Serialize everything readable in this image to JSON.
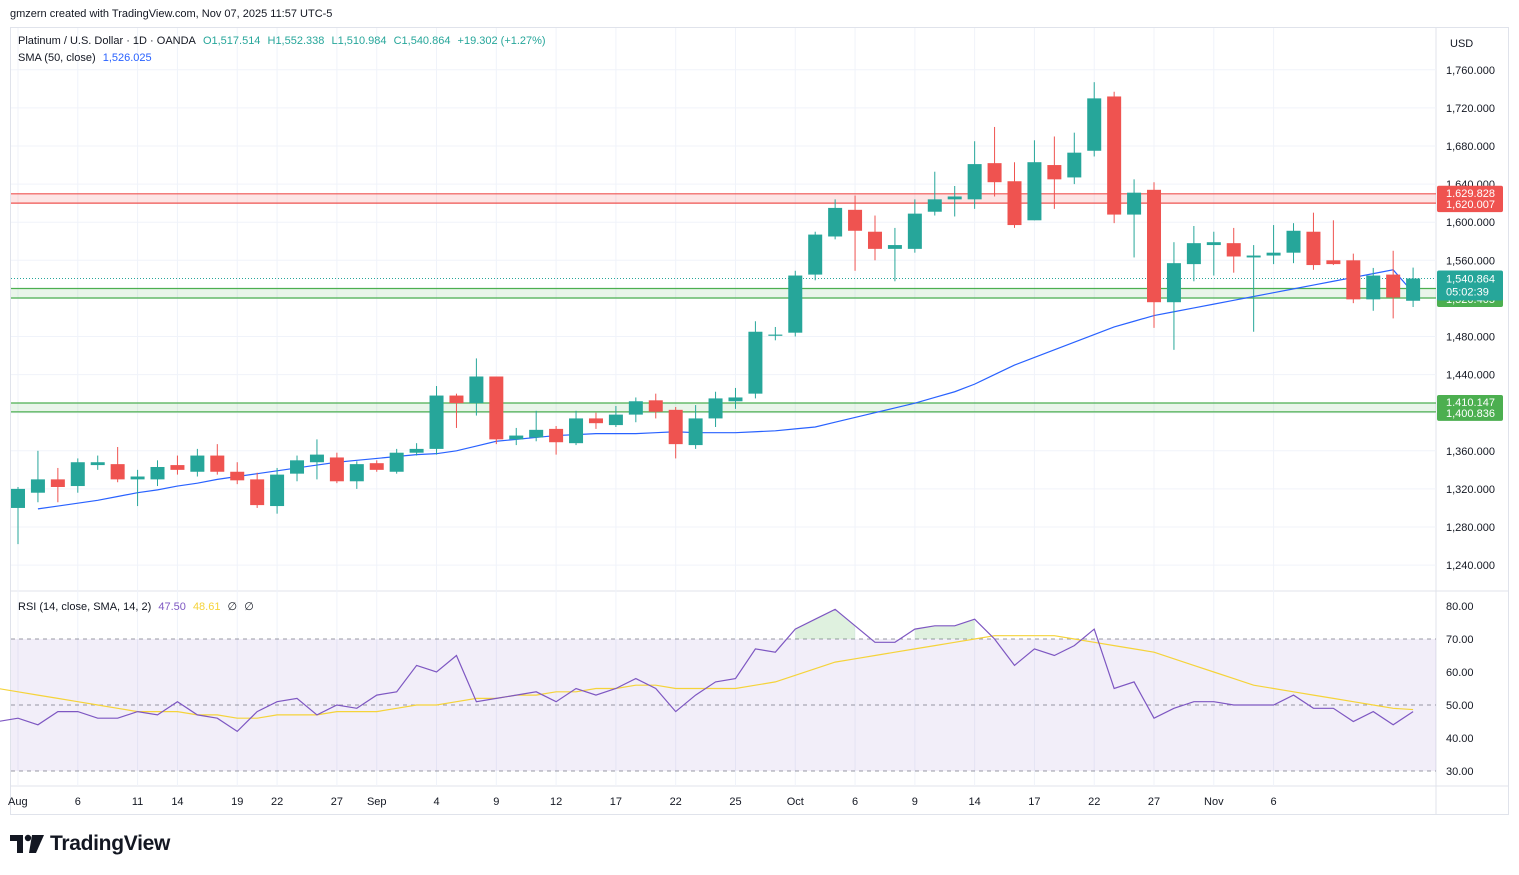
{
  "header": {
    "attribution": "gmzern created with TradingView.com, Nov 07, 2025 11:57 UTC-5"
  },
  "legend": {
    "symbol": "Platinum / U.S. Dollar · 1D · OANDA",
    "open": "O1,517.514",
    "high": "H1,552.338",
    "low": "L1,510.984",
    "close": "C1,540.864",
    "change": "+19.302 (+1.27%)",
    "sma_label": "SMA (50, close)",
    "sma_value": "1,526.025",
    "rsi_label": "RSI (14, close, SMA, 14, 2)",
    "rsi_value": "47.50",
    "rsi_sma_value": "48.61",
    "rsi_extra1": "∅",
    "rsi_extra2": "∅"
  },
  "price_scale": {
    "currency": "USD"
  },
  "brand": {
    "name": "TradingView"
  },
  "colors": {
    "up": "#26a69a",
    "down": "#ef5350",
    "sma": "#2962ff",
    "rsi": "#7e57c2",
    "rsi_sma": "#f5d33a",
    "resistance": "#ef5350",
    "support": "#4caf50"
  },
  "chart_data": [
    {
      "type": "candlestick",
      "title": "Platinum / U.S. Dollar · 1D · OANDA",
      "ylim": [
        1220,
        1780
      ],
      "y_ticks": [
        "1,240.000",
        "1,280.000",
        "1,320.000",
        "1,360.000",
        "1,400.000",
        "1,440.000",
        "1,480.000",
        "1,520.000",
        "1,560.000",
        "1,600.000",
        "1,640.000",
        "1,680.000",
        "1,720.000",
        "1,760.000"
      ],
      "x_tick_labels": [
        "Aug",
        "6",
        "11",
        "14",
        "19",
        "22",
        "27",
        "Sep",
        "4",
        "9",
        "12",
        "17",
        "22",
        "25",
        "Oct",
        "6",
        "9",
        "14",
        "17",
        "22",
        "27",
        "Nov",
        "6"
      ],
      "candles": [
        {
          "o": 1300,
          "h": 1322,
          "l": 1262,
          "c": 1320
        },
        {
          "o": 1316,
          "h": 1360,
          "l": 1306,
          "c": 1330
        },
        {
          "o": 1330,
          "h": 1342,
          "l": 1306,
          "c": 1322
        },
        {
          "o": 1323,
          "h": 1352,
          "l": 1316,
          "c": 1348
        },
        {
          "o": 1345,
          "h": 1355,
          "l": 1340,
          "c": 1348
        },
        {
          "o": 1346,
          "h": 1364,
          "l": 1327,
          "c": 1330
        },
        {
          "o": 1330,
          "h": 1340,
          "l": 1302,
          "c": 1333
        },
        {
          "o": 1330,
          "h": 1350,
          "l": 1323,
          "c": 1343
        },
        {
          "o": 1345,
          "h": 1355,
          "l": 1335,
          "c": 1340
        },
        {
          "o": 1338,
          "h": 1362,
          "l": 1333,
          "c": 1355
        },
        {
          "o": 1355,
          "h": 1367,
          "l": 1335,
          "c": 1338
        },
        {
          "o": 1338,
          "h": 1348,
          "l": 1325,
          "c": 1329
        },
        {
          "o": 1330,
          "h": 1337,
          "l": 1300,
          "c": 1303
        },
        {
          "o": 1302,
          "h": 1342,
          "l": 1294,
          "c": 1335
        },
        {
          "o": 1336,
          "h": 1355,
          "l": 1328,
          "c": 1350
        },
        {
          "o": 1348,
          "h": 1372,
          "l": 1330,
          "c": 1356
        },
        {
          "o": 1353,
          "h": 1358,
          "l": 1326,
          "c": 1328
        },
        {
          "o": 1328,
          "h": 1349,
          "l": 1320,
          "c": 1346
        },
        {
          "o": 1347,
          "h": 1350,
          "l": 1338,
          "c": 1340
        },
        {
          "o": 1338,
          "h": 1362,
          "l": 1336,
          "c": 1358
        },
        {
          "o": 1358,
          "h": 1368,
          "l": 1355,
          "c": 1362
        },
        {
          "o": 1362,
          "h": 1428,
          "l": 1356,
          "c": 1418
        },
        {
          "o": 1418,
          "h": 1420,
          "l": 1384,
          "c": 1410
        },
        {
          "o": 1410,
          "h": 1457,
          "l": 1397,
          "c": 1438
        },
        {
          "o": 1438,
          "h": 1438,
          "l": 1367,
          "c": 1372
        },
        {
          "o": 1372,
          "h": 1384,
          "l": 1366,
          "c": 1376
        },
        {
          "o": 1374,
          "h": 1402,
          "l": 1370,
          "c": 1382
        },
        {
          "o": 1383,
          "h": 1386,
          "l": 1356,
          "c": 1369
        },
        {
          "o": 1368,
          "h": 1402,
          "l": 1366,
          "c": 1394
        },
        {
          "o": 1394,
          "h": 1400,
          "l": 1383,
          "c": 1389
        },
        {
          "o": 1387,
          "h": 1407,
          "l": 1385,
          "c": 1398
        },
        {
          "o": 1398,
          "h": 1416,
          "l": 1390,
          "c": 1412
        },
        {
          "o": 1413,
          "h": 1420,
          "l": 1394,
          "c": 1401
        },
        {
          "o": 1403,
          "h": 1406,
          "l": 1352,
          "c": 1367
        },
        {
          "o": 1366,
          "h": 1408,
          "l": 1362,
          "c": 1394
        },
        {
          "o": 1394,
          "h": 1422,
          "l": 1385,
          "c": 1415
        },
        {
          "o": 1412,
          "h": 1426,
          "l": 1404,
          "c": 1416
        },
        {
          "o": 1420,
          "h": 1496,
          "l": 1415,
          "c": 1485
        },
        {
          "o": 1482,
          "h": 1490,
          "l": 1476,
          "c": 1482
        },
        {
          "o": 1484,
          "h": 1549,
          "l": 1480,
          "c": 1544
        },
        {
          "o": 1545,
          "h": 1590,
          "l": 1539,
          "c": 1587
        },
        {
          "o": 1585,
          "h": 1624,
          "l": 1582,
          "c": 1615
        },
        {
          "o": 1613,
          "h": 1628,
          "l": 1549,
          "c": 1591
        },
        {
          "o": 1590,
          "h": 1607,
          "l": 1560,
          "c": 1572
        },
        {
          "o": 1572,
          "h": 1594,
          "l": 1538,
          "c": 1576
        },
        {
          "o": 1572,
          "h": 1624,
          "l": 1568,
          "c": 1609
        },
        {
          "o": 1611,
          "h": 1653,
          "l": 1607,
          "c": 1624
        },
        {
          "o": 1624,
          "h": 1638,
          "l": 1606,
          "c": 1627
        },
        {
          "o": 1624,
          "h": 1685,
          "l": 1614,
          "c": 1661
        },
        {
          "o": 1662,
          "h": 1700,
          "l": 1627,
          "c": 1642
        },
        {
          "o": 1643,
          "h": 1663,
          "l": 1594,
          "c": 1597
        },
        {
          "o": 1602,
          "h": 1686,
          "l": 1602,
          "c": 1663
        },
        {
          "o": 1660,
          "h": 1690,
          "l": 1614,
          "c": 1645
        },
        {
          "o": 1647,
          "h": 1694,
          "l": 1640,
          "c": 1673
        },
        {
          "o": 1675,
          "h": 1747,
          "l": 1669,
          "c": 1730
        },
        {
          "o": 1732,
          "h": 1737,
          "l": 1599,
          "c": 1608
        },
        {
          "o": 1608,
          "h": 1645,
          "l": 1563,
          "c": 1631
        },
        {
          "o": 1634,
          "h": 1642,
          "l": 1489,
          "c": 1516
        },
        {
          "o": 1516,
          "h": 1579,
          "l": 1466,
          "c": 1557
        },
        {
          "o": 1556,
          "h": 1596,
          "l": 1538,
          "c": 1578
        },
        {
          "o": 1576,
          "h": 1590,
          "l": 1544,
          "c": 1579
        },
        {
          "o": 1578,
          "h": 1594,
          "l": 1547,
          "c": 1564
        },
        {
          "o": 1563,
          "h": 1576,
          "l": 1485,
          "c": 1565
        },
        {
          "o": 1565,
          "h": 1597,
          "l": 1556,
          "c": 1568
        },
        {
          "o": 1568,
          "h": 1599,
          "l": 1557,
          "c": 1591
        },
        {
          "o": 1590,
          "h": 1610,
          "l": 1550,
          "c": 1555
        },
        {
          "o": 1560,
          "h": 1602,
          "l": 1555,
          "c": 1556
        },
        {
          "o": 1560,
          "h": 1567,
          "l": 1515,
          "c": 1519
        },
        {
          "o": 1519,
          "h": 1552,
          "l": 1507,
          "c": 1544
        },
        {
          "o": 1545,
          "h": 1570,
          "l": 1499,
          "c": 1521
        },
        {
          "o": 1517.514,
          "h": 1552.338,
          "l": 1510.984,
          "c": 1540.864
        }
      ],
      "sma50": [
        1299,
        1302,
        1305,
        1308,
        1312,
        1316,
        1319,
        1323,
        1326,
        1330,
        1333,
        1336,
        1339,
        1342,
        1345,
        1348,
        1350,
        1352,
        1354,
        1356,
        1357,
        1360,
        1365,
        1370,
        1372,
        1374,
        1376,
        1377,
        1378,
        1378,
        1378,
        1379,
        1380,
        1379,
        1379,
        1379,
        1380,
        1381,
        1383,
        1385,
        1390,
        1395,
        1400,
        1405,
        1410,
        1416,
        1422,
        1430,
        1440,
        1450,
        1458,
        1466,
        1474,
        1482,
        1490,
        1496,
        1502,
        1506,
        1510,
        1514,
        1518,
        1522,
        1526,
        1530,
        1534,
        1538,
        1542,
        1546,
        1550,
        1526.025
      ],
      "levels": [
        {
          "kind": "resistance",
          "from": 1620.007,
          "to": 1629.828,
          "labels": [
            "1,629.828",
            "1,620.007"
          ]
        },
        {
          "kind": "support",
          "from": 1520.405,
          "to": 1530.399,
          "labels": [
            "1,530.399",
            "1,520.405"
          ]
        },
        {
          "kind": "support",
          "from": 1400.836,
          "to": 1410.147,
          "labels": [
            "1,410.147",
            "1,400.836"
          ]
        }
      ],
      "last_price": {
        "value": 1540.864,
        "label": "1,540.864",
        "countdown": "05:02:39"
      }
    },
    {
      "type": "line",
      "title": "RSI (14, close, SMA, 14, 2)",
      "ylim": [
        26,
        86
      ],
      "y_ticks": [
        "30.00",
        "40.00",
        "50.00",
        "60.00",
        "70.00",
        "80.00"
      ],
      "bands": [
        30,
        70
      ],
      "series": [
        {
          "name": "RSI",
          "values": [
            42,
            45,
            46,
            44,
            48,
            48,
            46,
            46,
            48,
            47,
            51,
            47,
            46,
            42,
            48,
            51,
            52,
            47,
            50,
            49,
            53,
            54,
            62,
            60,
            65,
            51,
            52,
            53,
            54,
            51,
            55,
            53,
            55,
            58,
            55,
            48,
            53,
            57,
            58,
            67,
            66,
            73,
            76,
            79,
            74,
            69,
            69,
            73,
            74,
            74,
            76,
            70,
            62,
            67,
            65,
            68,
            73,
            55,
            57,
            46,
            49,
            51,
            51,
            50,
            50,
            50,
            53,
            49,
            49,
            45,
            48,
            44,
            48
          ],
          "last": 47.5
        },
        {
          "name": "RSI SMA",
          "values": [
            56,
            55,
            54,
            53,
            52,
            51,
            50,
            49,
            48,
            48,
            48,
            47,
            47,
            46,
            46,
            47,
            47,
            47,
            48,
            48,
            48,
            49,
            50,
            50,
            51,
            52,
            52,
            53,
            53,
            54,
            54,
            55,
            55,
            56,
            56,
            55,
            55,
            55,
            55,
            56,
            57,
            59,
            61,
            63,
            64,
            65,
            66,
            67,
            68,
            69,
            70,
            71,
            71,
            71,
            71,
            70,
            69,
            68,
            67,
            66,
            64,
            62,
            60,
            58,
            56,
            55,
            54,
            53,
            52,
            51,
            50,
            49,
            48.61
          ],
          "last": 48.61
        }
      ]
    }
  ]
}
